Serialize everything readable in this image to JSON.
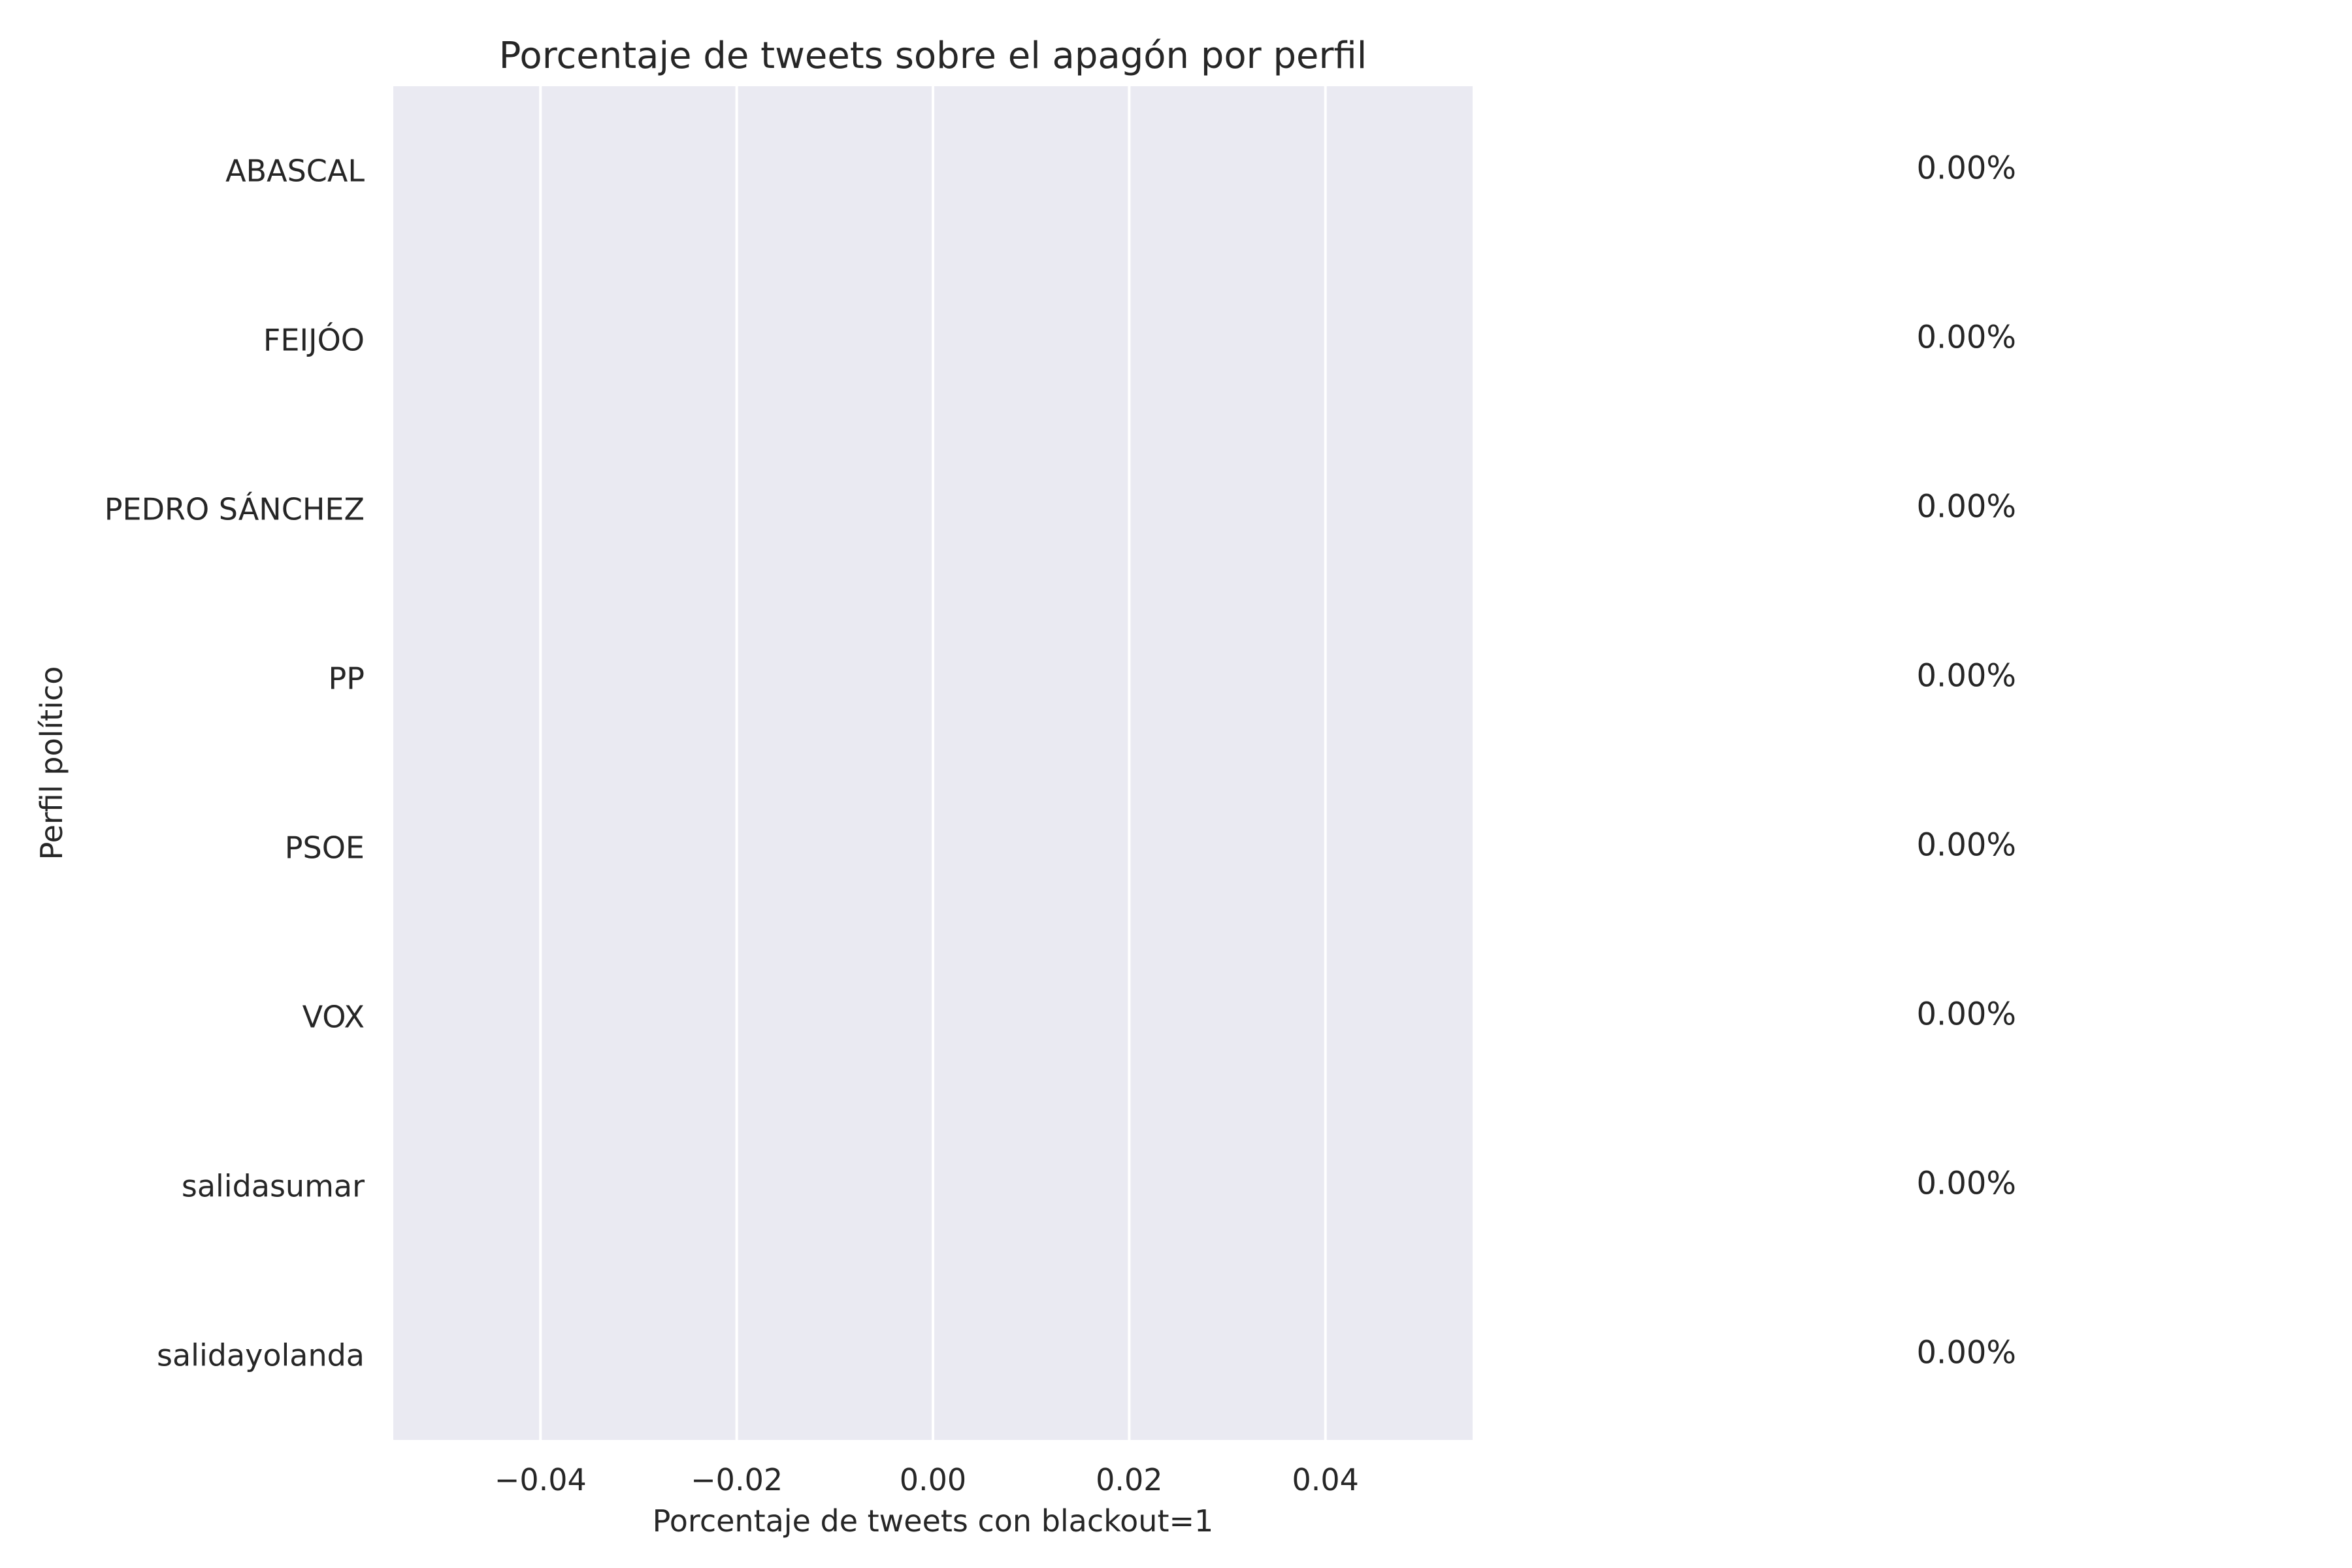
{
  "chart_data": {
    "type": "bar",
    "orientation": "horizontal",
    "title": "Porcentaje de tweets sobre el apagón por perfil",
    "xlabel": "Porcentaje de tweets con blackout=1",
    "ylabel": "Perfil político",
    "categories": [
      "ABASCAL",
      "FEIJÓO",
      "PEDRO SÁNCHEZ",
      "PP",
      "PSOE",
      "VOX",
      "salidasumar",
      "salidayolanda"
    ],
    "values": [
      0,
      0,
      0,
      0,
      0,
      0,
      0,
      0
    ],
    "value_labels": [
      "0.00%",
      "0.00%",
      "0.00%",
      "0.00%",
      "0.00%",
      "0.00%",
      "0.00%",
      "0.00%"
    ],
    "xticks": [
      -0.04,
      -0.02,
      0.0,
      0.02,
      0.04
    ],
    "xtick_labels": [
      "−0.04",
      "−0.02",
      "0.00",
      "0.02",
      "0.04"
    ],
    "xlim": [
      -0.055,
      0.055
    ],
    "grid": "vertical",
    "colors": {
      "plot_background": "#eaeaf2",
      "grid": "#ffffff",
      "text": "#262626"
    }
  }
}
